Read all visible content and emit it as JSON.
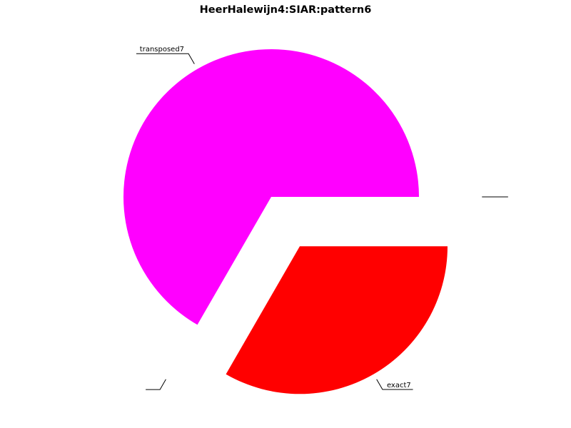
{
  "chart_data": {
    "type": "pie",
    "title": "HeerHalewijn4:SIAR:pattern6",
    "slices": [
      {
        "label": "transposed7",
        "value": 0.6667,
        "color": "#ff00ff",
        "exploded": false
      },
      {
        "label": "",
        "value": 0.0,
        "color": "#0000ff",
        "exploded": true
      },
      {
        "label": "exact7",
        "value": 0.3333,
        "color": "#ff0000",
        "exploded": true
      },
      {
        "label": "",
        "value": 0.0,
        "color": "#00ff00",
        "exploded": true
      }
    ],
    "start_angle_deg": 0,
    "direction": "counterclockwise",
    "legend": "none"
  }
}
